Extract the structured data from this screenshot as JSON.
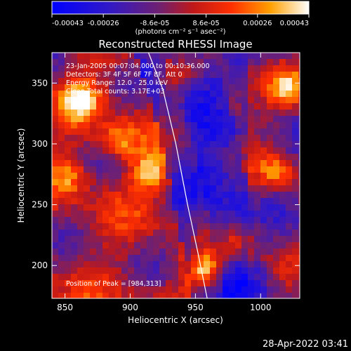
{
  "colorbar": {
    "tick_labels": [
      "-0.00043",
      "-0.00026",
      "-8.6e-05",
      "8.6e-05",
      "0.00026",
      "0.00043"
    ],
    "unit_label": "(photons cm⁻² s⁻¹ asec⁻²)",
    "range": [
      -0.00043,
      0.00043
    ]
  },
  "chart_data": {
    "type": "heatmap",
    "title": "Reconstructed RHESSI Image",
    "xlabel": "Heliocentric X (arcsec)",
    "ylabel": "Heliocentric Y (arcsec)",
    "xlim": [
      840,
      1030
    ],
    "ylim": [
      173,
      375
    ],
    "x_ticks": [
      850,
      900,
      950,
      1000
    ],
    "y_ticks": [
      200,
      250,
      300,
      350
    ],
    "info_lines": [
      "23-Jan-2005 00:07:04.000 to 00:10:36.000",
      "Detectors: 3F 4F 5F 6F 7F 8F, Att 0",
      "Energy Range: 12.0 - 25.0 keV",
      "Clean     Total counts: 3.17E+03"
    ],
    "peak_label": "Position of Peak = [984,313]",
    "peak_position": [
      984,
      313
    ],
    "limb_curve": [
      [
        914,
        375
      ],
      [
        925,
        345
      ],
      [
        935,
        300
      ],
      [
        944,
        250
      ],
      [
        952,
        210
      ],
      [
        959,
        173
      ]
    ],
    "colormap": "blue-purple-red-yellow-white",
    "grid": false
  },
  "timestamp": "28-Apr-2022 03:41"
}
